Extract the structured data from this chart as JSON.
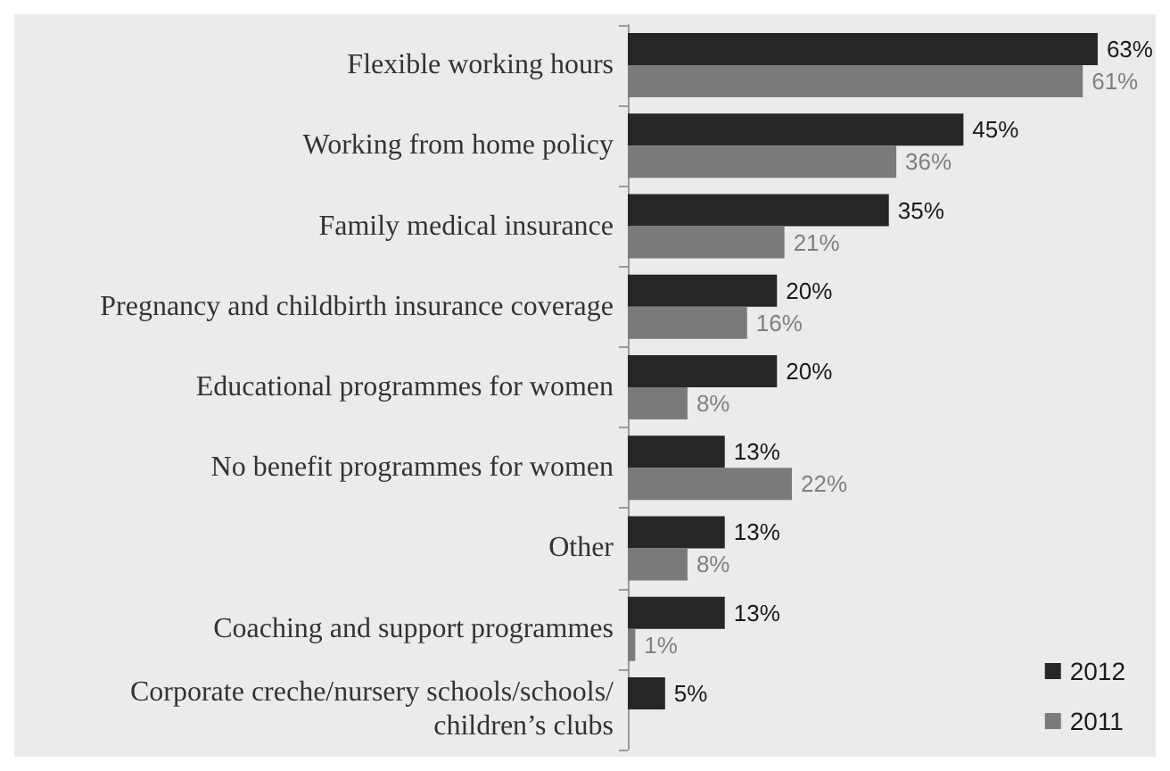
{
  "chart_data": {
    "type": "bar",
    "orientation": "horizontal",
    "categories": [
      "Flexible working hours",
      "Working from home policy",
      "Family medical insurance",
      "Pregnancy and childbirth insurance coverage",
      "Educational programmes for women",
      "No benefit programmes for women",
      "Other",
      "Coaching and support programmes",
      "Corporate creche/nursery schools/schools/children’s clubs"
    ],
    "series": [
      {
        "name": "2012",
        "color": "#262626",
        "values": [
          63,
          45,
          35,
          20,
          20,
          13,
          13,
          13,
          5
        ],
        "value_labels": [
          "63%",
          "45%",
          "35%",
          "20%",
          "20%",
          "13%",
          "13%",
          "13%",
          "5%"
        ]
      },
      {
        "name": "2011",
        "color": "#7a7a7a",
        "values": [
          61,
          36,
          21,
          16,
          8,
          22,
          8,
          1,
          null
        ],
        "value_labels": [
          "61%",
          "36%",
          "21%",
          "16%",
          "8%",
          "22%",
          "8%",
          "1%",
          null
        ]
      }
    ],
    "legend": "bottom right"
  }
}
